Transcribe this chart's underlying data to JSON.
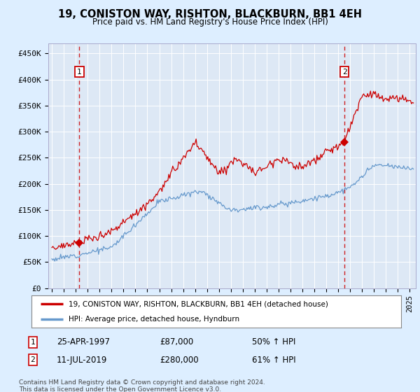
{
  "title": "19, CONISTON WAY, RISHTON, BLACKBURN, BB1 4EH",
  "subtitle": "Price paid vs. HM Land Registry's House Price Index (HPI)",
  "ylabel_ticks": [
    "£0",
    "£50K",
    "£100K",
    "£150K",
    "£200K",
    "£250K",
    "£300K",
    "£350K",
    "£400K",
    "£450K"
  ],
  "yvalues": [
    0,
    50000,
    100000,
    150000,
    200000,
    250000,
    300000,
    350000,
    400000,
    450000
  ],
  "ylim": [
    0,
    470000
  ],
  "xlim_start": 1994.7,
  "xlim_end": 2025.5,
  "purchase1_year": 1997.31,
  "purchase1_price": 87000,
  "purchase1_label": "1",
  "purchase1_date": "25-APR-1997",
  "purchase1_amount": "£87,000",
  "purchase1_pct": "50% ↑ HPI",
  "purchase2_year": 2019.52,
  "purchase2_price": 280000,
  "purchase2_label": "2",
  "purchase2_date": "11-JUL-2019",
  "purchase2_amount": "£280,000",
  "purchase2_pct": "61% ↑ HPI",
  "red_line_color": "#cc0000",
  "blue_line_color": "#6699cc",
  "background_color": "#ddeeff",
  "plot_bg_color": "#dde8f5",
  "grid_color": "#ffffff",
  "legend_line1": "19, CONISTON WAY, RISHTON, BLACKBURN, BB1 4EH (detached house)",
  "legend_line2": "HPI: Average price, detached house, Hyndburn",
  "footer": "Contains HM Land Registry data © Crown copyright and database right 2024.\nThis data is licensed under the Open Government Licence v3.0.",
  "xtick_years": [
    1995,
    1996,
    1997,
    1998,
    1999,
    2000,
    2001,
    2002,
    2003,
    2004,
    2005,
    2006,
    2007,
    2008,
    2009,
    2010,
    2011,
    2012,
    2013,
    2014,
    2015,
    2016,
    2017,
    2018,
    2019,
    2020,
    2021,
    2022,
    2023,
    2024,
    2025
  ]
}
